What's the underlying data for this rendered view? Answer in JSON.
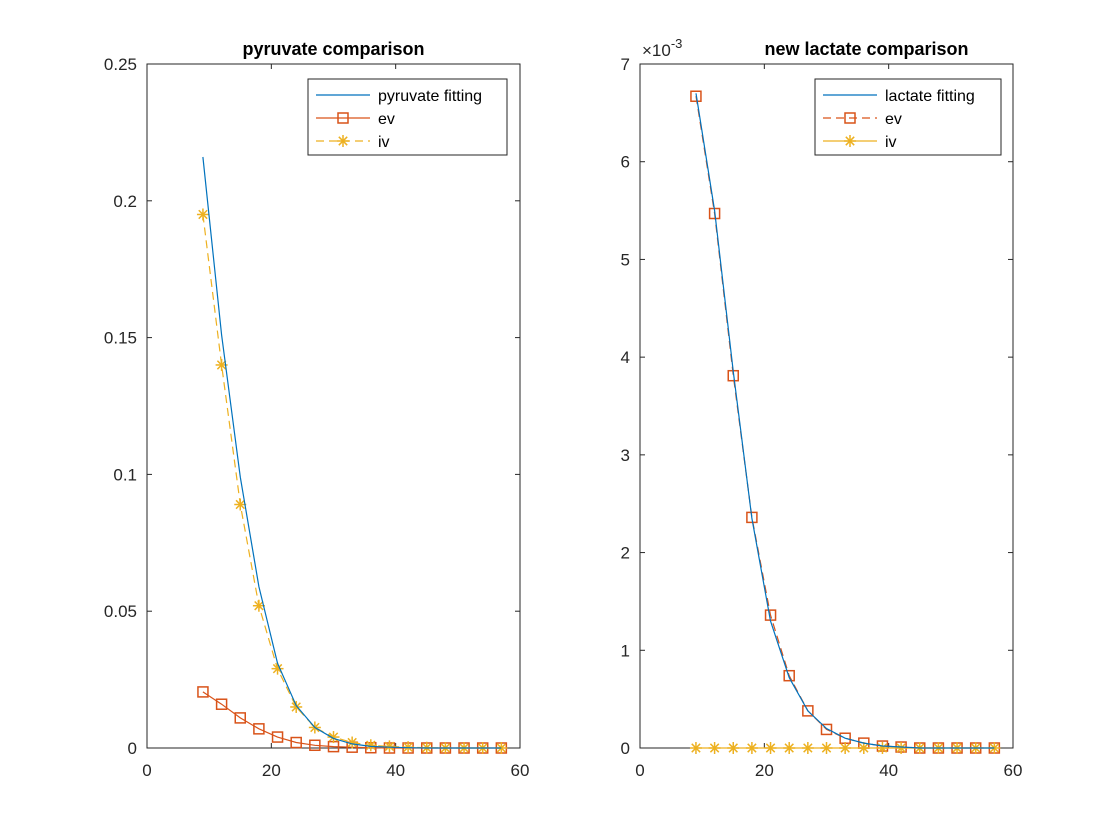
{
  "colors": {
    "fit": "#0072BD",
    "ev": "#D95319",
    "iv": "#EDB120",
    "axis": "#262626"
  },
  "chart_data": [
    {
      "type": "line",
      "title": "pyruvate comparison",
      "xlabel": "",
      "ylabel": "",
      "xlim": [
        0,
        60
      ],
      "ylim": [
        0,
        0.25
      ],
      "xticks": [
        0,
        20,
        40,
        60
      ],
      "xtick_labels": [
        "0",
        "20",
        "40",
        "60"
      ],
      "yticks": [
        0,
        0.05,
        0.1,
        0.15,
        0.2,
        0.25
      ],
      "ytick_labels": [
        "0",
        "0.05",
        "0.1",
        "0.15",
        "0.2",
        "0.25"
      ],
      "exponent_label": "",
      "grid": false,
      "legend_position": "top-right",
      "x": [
        9,
        12,
        15,
        18,
        21,
        24,
        27,
        30,
        33,
        36,
        39,
        42,
        45,
        48,
        51,
        54,
        57
      ],
      "series": [
        {
          "name": "pyruvate fitting",
          "style": "solid",
          "marker": "none",
          "color": "#0072BD",
          "values": [
            0.216,
            0.151,
            0.099,
            0.059,
            0.031,
            0.0155,
            0.0075,
            0.0035,
            0.0015,
            0.0006,
            0.0003,
            0.0001,
            0,
            0,
            0,
            0,
            0
          ]
        },
        {
          "name": "ev",
          "style": "solid",
          "marker": "square",
          "color": "#D95319",
          "values": [
            0.0205,
            0.016,
            0.011,
            0.007,
            0.004,
            0.002,
            0.001,
            0.0005,
            0.0003,
            0.0001,
            0,
            0,
            0,
            0,
            0,
            0,
            0
          ]
        },
        {
          "name": "iv",
          "style": "dashed",
          "marker": "star",
          "color": "#EDB120",
          "values": [
            0.195,
            0.14,
            0.089,
            0.052,
            0.029,
            0.015,
            0.0075,
            0.004,
            0.002,
            0.001,
            0.0006,
            0.0003,
            0.0001,
            0,
            0,
            0,
            0
          ]
        }
      ]
    },
    {
      "type": "line",
      "title": "new lactate comparison",
      "xlabel": "",
      "ylabel": "",
      "xlim": [
        0,
        60
      ],
      "ylim": [
        0,
        7
      ],
      "xticks": [
        0,
        20,
        40,
        60
      ],
      "xtick_labels": [
        "0",
        "20",
        "40",
        "60"
      ],
      "yticks": [
        0,
        1,
        2,
        3,
        4,
        5,
        6,
        7
      ],
      "ytick_labels": [
        "0",
        "1",
        "2",
        "3",
        "4",
        "5",
        "6",
        "7"
      ],
      "exponent_label": "×10",
      "exponent_power": "-3",
      "grid": false,
      "legend_position": "top-right",
      "x": [
        9,
        12,
        15,
        18,
        21,
        24,
        27,
        30,
        33,
        36,
        39,
        42,
        45,
        48,
        51,
        54,
        57
      ],
      "series": [
        {
          "name": "lactate fitting",
          "style": "solid",
          "marker": "none",
          "color": "#0072BD",
          "values": [
            6.7,
            5.5,
            3.85,
            2.35,
            1.3,
            0.72,
            0.38,
            0.2,
            0.1,
            0.05,
            0.02,
            0.01,
            0,
            0,
            0,
            0,
            0
          ]
        },
        {
          "name": "ev",
          "style": "dashed",
          "marker": "square",
          "color": "#D95319",
          "values": [
            6.67,
            5.47,
            3.81,
            2.36,
            1.36,
            0.74,
            0.38,
            0.19,
            0.1,
            0.05,
            0.02,
            0.01,
            0,
            0,
            0,
            0,
            0
          ]
        },
        {
          "name": "iv",
          "style": "solid",
          "marker": "star",
          "color": "#EDB120",
          "values": [
            0,
            0,
            0,
            0,
            0,
            0,
            0,
            0,
            0,
            0,
            0,
            0,
            0,
            0,
            0,
            0,
            0
          ]
        }
      ]
    }
  ]
}
